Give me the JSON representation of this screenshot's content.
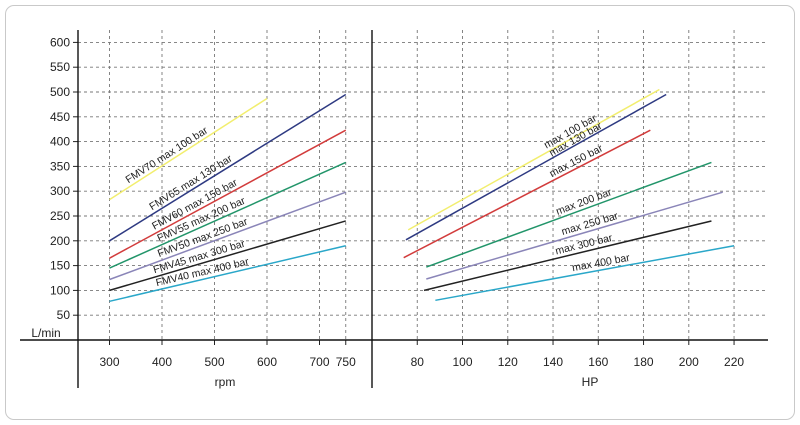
{
  "chart_data": [
    {
      "type": "line",
      "xlabel": "rpm",
      "ylabel": "L/min",
      "xticks": [
        300,
        400,
        500,
        600,
        700,
        750
      ],
      "yticks": [
        50,
        100,
        150,
        200,
        250,
        300,
        350,
        400,
        450,
        500,
        550,
        600
      ],
      "xlim": [
        240,
        800
      ],
      "ylim": [
        0,
        625
      ],
      "grid": true,
      "series": [
        {
          "name": "FMV70 max 100 bar",
          "color": "#f2ee6e",
          "x": [
            300,
            600
          ],
          "y": [
            283,
            487
          ]
        },
        {
          "name": "FMV65 max 130 bar",
          "color": "#2e3a82",
          "x": [
            300,
            750
          ],
          "y": [
            200,
            495
          ]
        },
        {
          "name": "FMV60 max 150 bar",
          "color": "#d23c3c",
          "x": [
            300,
            750
          ],
          "y": [
            165,
            423
          ]
        },
        {
          "name": "FMV55 max 200 bar",
          "color": "#22956a",
          "x": [
            300,
            750
          ],
          "y": [
            145,
            358
          ]
        },
        {
          "name": "FMV50 max 250 bar",
          "color": "#8a85b8",
          "x": [
            300,
            750
          ],
          "y": [
            122,
            298
          ]
        },
        {
          "name": "FMV45 max 300 bar",
          "color": "#222222",
          "x": [
            300,
            750
          ],
          "y": [
            100,
            240
          ]
        },
        {
          "name": "FMV40 max 400 bar",
          "color": "#2aa7c9",
          "x": [
            300,
            750
          ],
          "y": [
            78,
            190
          ]
        }
      ]
    },
    {
      "type": "line",
      "xlabel": "HP",
      "xticks": [
        80,
        100,
        120,
        140,
        160,
        180,
        200,
        220
      ],
      "ylim": [
        0,
        625
      ],
      "xlim": [
        60,
        235
      ],
      "grid": true,
      "series": [
        {
          "name": "max 100 bar",
          "color": "#f2ee6e",
          "x": [
            76,
            187
          ],
          "y": [
            222,
            505
          ]
        },
        {
          "name": "max 130 bar",
          "color": "#2e3a82",
          "x": [
            75,
            190
          ],
          "y": [
            202,
            495
          ]
        },
        {
          "name": "max 150 bar",
          "color": "#d23c3c",
          "x": [
            74,
            183
          ],
          "y": [
            166,
            423
          ]
        },
        {
          "name": "max 200 bar",
          "color": "#22956a",
          "x": [
            84,
            210
          ],
          "y": [
            147,
            358
          ]
        },
        {
          "name": "max 250 bar",
          "color": "#8a85b8",
          "x": [
            84,
            215
          ],
          "y": [
            123,
            298
          ]
        },
        {
          "name": "max 300 bar",
          "color": "#222222",
          "x": [
            83,
            210
          ],
          "y": [
            100,
            240
          ]
        },
        {
          "name": "max 400 bar",
          "color": "#2aa7c9",
          "x": [
            88,
            220
          ],
          "y": [
            80,
            190
          ]
        }
      ]
    }
  ]
}
